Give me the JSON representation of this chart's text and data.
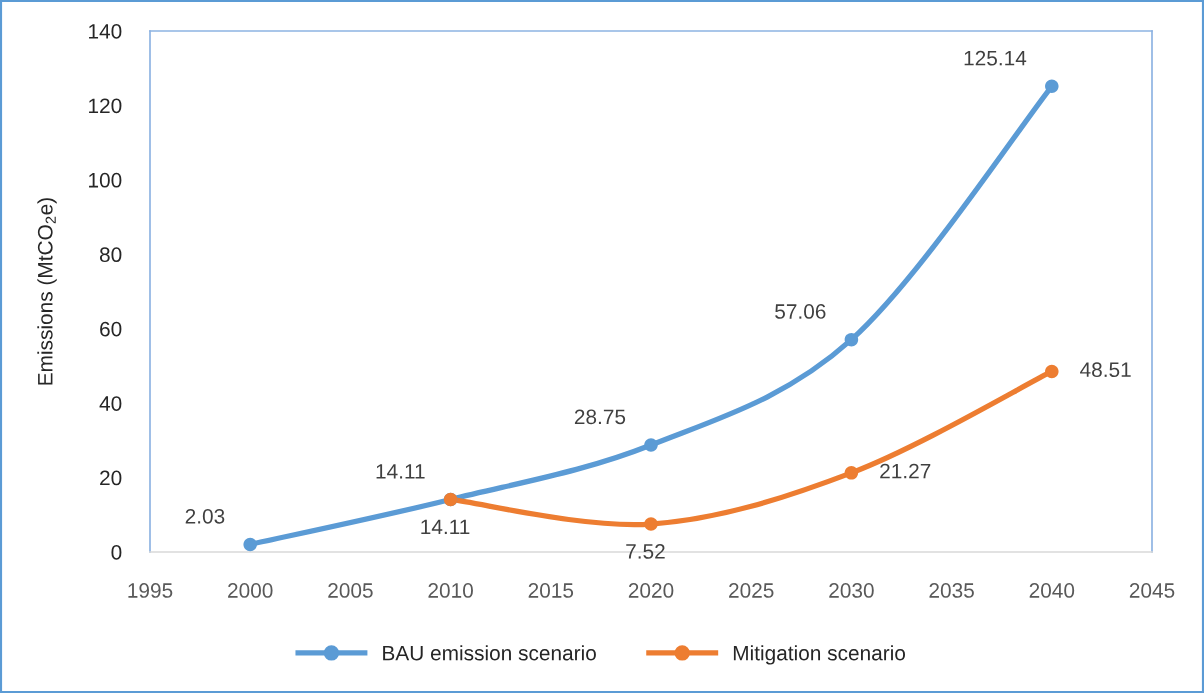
{
  "chart_data": {
    "type": "line",
    "ylabel": "Emissions (MtCO$_{2}$e)",
    "x": [
      2000,
      2010,
      2020,
      2030,
      2040
    ],
    "series": [
      {
        "name": "BAU emission scenario",
        "color": "#5b9bd5",
        "values": [
          2.03,
          14.11,
          28.75,
          57.06,
          125.14
        ]
      },
      {
        "name": "Mitigation scenario",
        "color": "#ed7d31",
        "x": [
          2010,
          2020,
          2030,
          2040
        ],
        "values": [
          14.11,
          7.52,
          21.27,
          48.51
        ]
      }
    ],
    "xlim": [
      1995,
      2045
    ],
    "xticks": [
      1995,
      2000,
      2005,
      2010,
      2015,
      2020,
      2025,
      2030,
      2035,
      2040,
      2045
    ],
    "ylim": [
      0,
      140
    ],
    "yticks": [
      0,
      20,
      40,
      60,
      80,
      100,
      120,
      140
    ],
    "grid": false,
    "legend": "bottom",
    "marker": "circle",
    "line_style": "solid",
    "data_labels": true
  }
}
